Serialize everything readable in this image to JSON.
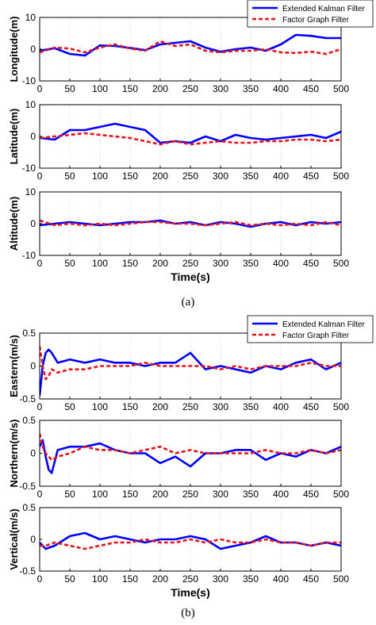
{
  "colors": {
    "ekf": "#0000ff",
    "fgf": "#e8141b",
    "grid": "#cfcfcf",
    "axis": "#000000"
  },
  "figure_labels": {
    "a": "(a)",
    "b": "(b)"
  },
  "chart_data": [
    {
      "type": "line",
      "group": "a",
      "xlabel": "",
      "ylabel": "Longitude(m)",
      "xlim": [
        0,
        500
      ],
      "ylim": [
        -10,
        10
      ],
      "xticks": [
        0,
        50,
        100,
        150,
        200,
        250,
        300,
        350,
        400,
        450,
        500
      ],
      "yticks": [
        -10,
        0,
        10
      ],
      "grid": "vertical",
      "legend": {
        "placement": "top-right",
        "entries": [
          "Extended Kalman Filter",
          "Factor Graph Filter"
        ]
      },
      "x": [
        0,
        25,
        50,
        75,
        100,
        125,
        150,
        175,
        200,
        225,
        250,
        275,
        300,
        325,
        350,
        375,
        400,
        425,
        450,
        475,
        500
      ],
      "series": [
        {
          "name": "Extended Kalman Filter",
          "style": "solid",
          "values": [
            -0.5,
            0.3,
            -1.5,
            -2.0,
            1.2,
            1.0,
            0.4,
            -0.3,
            1.5,
            2.0,
            2.5,
            0.5,
            -0.8,
            0.0,
            0.5,
            -0.5,
            1.5,
            4.5,
            4.2,
            3.5,
            3.5
          ]
        },
        {
          "name": "Factor Graph Filter",
          "style": "dashed",
          "values": [
            -1.0,
            0.5,
            0.2,
            -1.0,
            0.5,
            1.5,
            0.2,
            -0.5,
            2.5,
            1.0,
            1.5,
            -0.5,
            -1.0,
            -0.5,
            -0.5,
            0.0,
            -1.0,
            -1.2,
            -0.8,
            -1.5,
            0.0
          ]
        }
      ]
    },
    {
      "type": "line",
      "group": "a",
      "xlabel": "",
      "ylabel": "Latitude(m)",
      "xlim": [
        0,
        500
      ],
      "ylim": [
        -10,
        10
      ],
      "xticks": [
        0,
        50,
        100,
        150,
        200,
        250,
        300,
        350,
        400,
        450,
        500
      ],
      "yticks": [
        -10,
        0,
        10
      ],
      "grid": "vertical",
      "x": [
        0,
        25,
        50,
        75,
        100,
        125,
        150,
        175,
        200,
        225,
        250,
        275,
        300,
        325,
        350,
        375,
        400,
        425,
        450,
        475,
        500
      ],
      "series": [
        {
          "name": "Extended Kalman Filter",
          "style": "solid",
          "values": [
            -0.5,
            -1.0,
            2.0,
            2.0,
            3.0,
            4.0,
            3.0,
            2.0,
            -2.0,
            -1.5,
            -2.0,
            0.0,
            -1.5,
            0.5,
            -0.5,
            -1.0,
            -0.5,
            0.0,
            0.5,
            -0.5,
            1.5
          ]
        },
        {
          "name": "Factor Graph Filter",
          "style": "dashed",
          "values": [
            -0.5,
            0.0,
            0.5,
            1.0,
            0.5,
            0.0,
            -0.5,
            -1.5,
            -2.5,
            -1.5,
            -2.5,
            -2.0,
            -1.5,
            -2.0,
            -2.0,
            -1.5,
            -1.5,
            -1.0,
            -1.0,
            -1.5,
            -1.0
          ]
        }
      ]
    },
    {
      "type": "line",
      "group": "a",
      "xlabel": "Time(s)",
      "ylabel": "Altitude(m)",
      "xlim": [
        0,
        500
      ],
      "ylim": [
        -10,
        10
      ],
      "xticks": [
        0,
        50,
        100,
        150,
        200,
        250,
        300,
        350,
        400,
        450,
        500
      ],
      "yticks": [
        -10,
        0,
        10
      ],
      "grid": "vertical",
      "x": [
        0,
        25,
        50,
        75,
        100,
        125,
        150,
        175,
        200,
        225,
        250,
        275,
        300,
        325,
        350,
        375,
        400,
        425,
        450,
        475,
        500
      ],
      "series": [
        {
          "name": "Extended Kalman Filter",
          "style": "solid",
          "values": [
            -0.5,
            0.0,
            0.5,
            0.0,
            -0.5,
            0.0,
            0.5,
            0.5,
            1.0,
            0.0,
            0.5,
            -0.5,
            0.5,
            0.0,
            -1.0,
            0.0,
            0.5,
            -0.5,
            0.5,
            0.0,
            0.5
          ]
        },
        {
          "name": "Factor Graph Filter",
          "style": "dashed",
          "values": [
            1.0,
            -0.5,
            0.0,
            -0.5,
            0.0,
            -0.5,
            0.0,
            0.5,
            0.5,
            0.0,
            0.0,
            -0.5,
            0.0,
            0.5,
            -0.5,
            0.0,
            -0.5,
            0.0,
            -0.5,
            0.5,
            -0.5
          ]
        }
      ]
    },
    {
      "type": "line",
      "group": "b",
      "xlabel": "",
      "ylabel": "Eastern(m/s)",
      "xlim": [
        0,
        500
      ],
      "ylim": [
        -0.5,
        0.5
      ],
      "xticks": [
        0,
        50,
        100,
        150,
        200,
        250,
        300,
        350,
        400,
        450,
        500
      ],
      "yticks": [
        -0.5,
        0,
        0.5
      ],
      "grid": "vertical",
      "legend": {
        "placement": "top-right",
        "entries": [
          "Extended Kalman Filter",
          "Factor Graph Filter"
        ]
      },
      "x": [
        0,
        5,
        10,
        15,
        20,
        30,
        50,
        75,
        100,
        125,
        150,
        175,
        200,
        225,
        250,
        275,
        300,
        325,
        350,
        375,
        400,
        425,
        450,
        475,
        500
      ],
      "series": [
        {
          "name": "Extended Kalman Filter",
          "style": "solid",
          "values": [
            -0.45,
            0.0,
            0.2,
            0.25,
            0.2,
            0.05,
            0.1,
            0.05,
            0.1,
            0.05,
            0.05,
            0.0,
            0.05,
            0.05,
            0.2,
            -0.05,
            0.0,
            -0.05,
            -0.1,
            0.0,
            -0.05,
            0.05,
            0.1,
            -0.05,
            0.05
          ]
        },
        {
          "name": "Factor Graph Filter",
          "style": "dashed",
          "values": [
            0.3,
            0.0,
            -0.2,
            -0.15,
            -0.05,
            -0.1,
            -0.05,
            -0.05,
            0.0,
            0.0,
            0.0,
            0.05,
            0.0,
            0.0,
            0.0,
            0.0,
            -0.05,
            0.0,
            -0.05,
            0.0,
            0.0,
            0.0,
            0.05,
            0.0,
            0.0
          ]
        }
      ]
    },
    {
      "type": "line",
      "group": "b",
      "xlabel": "",
      "ylabel": "Northern(m/s)",
      "xlim": [
        0,
        500
      ],
      "ylim": [
        -0.5,
        0.5
      ],
      "xticks": [
        0,
        50,
        100,
        150,
        200,
        250,
        300,
        350,
        400,
        450,
        500
      ],
      "yticks": [
        -0.5,
        0,
        0.5
      ],
      "grid": "vertical",
      "x": [
        0,
        5,
        10,
        15,
        20,
        30,
        50,
        75,
        100,
        125,
        150,
        175,
        200,
        225,
        250,
        275,
        300,
        325,
        350,
        375,
        400,
        425,
        450,
        475,
        500
      ],
      "series": [
        {
          "name": "Extended Kalman Filter",
          "style": "solid",
          "values": [
            0.1,
            0.2,
            -0.05,
            -0.25,
            -0.3,
            0.05,
            0.1,
            0.1,
            0.15,
            0.05,
            0.0,
            0.0,
            -0.15,
            -0.05,
            -0.2,
            0.0,
            0.0,
            0.05,
            0.05,
            -0.1,
            0.0,
            -0.05,
            0.05,
            0.0,
            0.1
          ]
        },
        {
          "name": "Factor Graph Filter",
          "style": "dashed",
          "values": [
            0.3,
            0.1,
            0.0,
            -0.05,
            -0.1,
            -0.05,
            0.0,
            0.1,
            0.05,
            0.05,
            0.0,
            0.05,
            0.1,
            0.0,
            0.05,
            0.0,
            0.0,
            0.0,
            0.0,
            0.05,
            0.0,
            0.0,
            0.05,
            0.0,
            0.05
          ]
        }
      ]
    },
    {
      "type": "line",
      "group": "b",
      "xlabel": "Time(s)",
      "ylabel": "Vertical(m/s)",
      "xlim": [
        0,
        500
      ],
      "ylim": [
        -0.5,
        0.5
      ],
      "xticks": [
        0,
        50,
        100,
        150,
        200,
        250,
        300,
        350,
        400,
        450,
        500
      ],
      "yticks": [
        -0.5,
        0,
        0.5
      ],
      "grid": "vertical",
      "x": [
        0,
        10,
        25,
        50,
        75,
        100,
        125,
        150,
        175,
        200,
        225,
        250,
        275,
        300,
        325,
        350,
        375,
        400,
        425,
        450,
        475,
        500
      ],
      "series": [
        {
          "name": "Extended Kalman Filter",
          "style": "solid",
          "values": [
            -0.05,
            -0.15,
            -0.1,
            0.05,
            0.1,
            0.0,
            0.05,
            0.0,
            -0.05,
            0.0,
            0.0,
            0.05,
            0.0,
            -0.15,
            -0.1,
            -0.05,
            0.05,
            -0.05,
            -0.05,
            -0.1,
            -0.05,
            -0.1
          ]
        },
        {
          "name": "Factor Graph Filter",
          "style": "dashed",
          "values": [
            -0.1,
            -0.1,
            -0.05,
            -0.1,
            -0.15,
            -0.1,
            -0.05,
            -0.05,
            0.0,
            -0.05,
            -0.05,
            0.0,
            -0.05,
            0.0,
            -0.05,
            -0.05,
            0.0,
            -0.05,
            -0.05,
            -0.1,
            -0.05,
            -0.05
          ]
        }
      ]
    }
  ]
}
